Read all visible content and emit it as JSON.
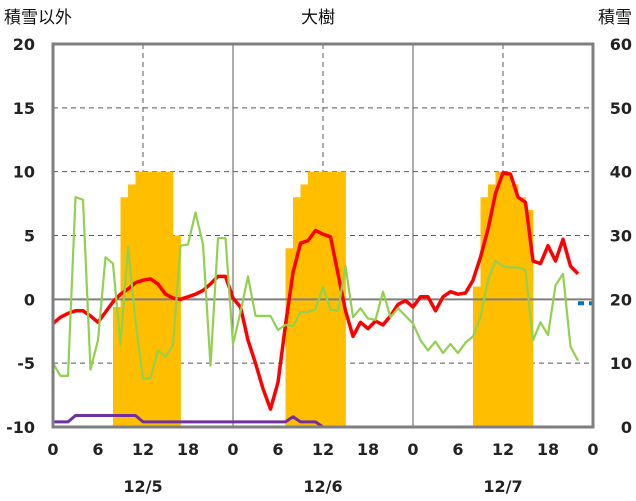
{
  "chart_data": {
    "type": "bar+line",
    "title": "大樹",
    "left_axis_label": "積雪以外",
    "right_axis_label": "積雪",
    "y_left": {
      "min": -10,
      "max": 20,
      "ticks": [
        "20",
        "15",
        "10",
        "5",
        "0",
        "-5",
        "-10"
      ]
    },
    "y_right": {
      "min": 0,
      "max": 60,
      "ticks": [
        "60",
        "50",
        "40",
        "30",
        "20",
        "10",
        "0"
      ]
    },
    "x": {
      "min": 0,
      "max": 72,
      "unit": "hours",
      "tick_labels": [
        "0",
        "6",
        "12",
        "18",
        "0",
        "6",
        "12",
        "18",
        "0",
        "6",
        "12",
        "18",
        "0"
      ],
      "day_labels": [
        "12/5",
        "12/6",
        "12/7"
      ]
    },
    "grid": true,
    "colors": {
      "bars": "#FFBF00",
      "red": "#FF0000",
      "green": "#92D050",
      "purple": "#7030A0",
      "blue": "#0070C0",
      "frame": "#7f7f7f",
      "zero": "#7f7f7f",
      "grid": "#595959"
    },
    "bars": {
      "values": [
        [
          0,
          0
        ],
        [
          1,
          0
        ],
        [
          2,
          0
        ],
        [
          3,
          0
        ],
        [
          4,
          0
        ],
        [
          5,
          0
        ],
        [
          6,
          0
        ],
        [
          7,
          0
        ],
        [
          8,
          18.8
        ],
        [
          9,
          36
        ],
        [
          10,
          38
        ],
        [
          11,
          40
        ],
        [
          12,
          40
        ],
        [
          13,
          40
        ],
        [
          14,
          40
        ],
        [
          15,
          40
        ],
        [
          16,
          30
        ],
        [
          17,
          0
        ],
        [
          18,
          0
        ],
        [
          19,
          0
        ],
        [
          20,
          0
        ],
        [
          21,
          0
        ],
        [
          22,
          0
        ],
        [
          23,
          0
        ],
        [
          24,
          0
        ],
        [
          25,
          0
        ],
        [
          26,
          0
        ],
        [
          27,
          0
        ],
        [
          28,
          0
        ],
        [
          29,
          0
        ],
        [
          30,
          0
        ],
        [
          31,
          28
        ],
        [
          32,
          36
        ],
        [
          33,
          38
        ],
        [
          34,
          40
        ],
        [
          35,
          40
        ],
        [
          36,
          40
        ],
        [
          37,
          40
        ],
        [
          38,
          40
        ],
        [
          39,
          0
        ],
        [
          40,
          0
        ],
        [
          41,
          0
        ],
        [
          42,
          0
        ],
        [
          43,
          0
        ],
        [
          44,
          0
        ],
        [
          45,
          0
        ],
        [
          46,
          0
        ],
        [
          47,
          0
        ],
        [
          48,
          0
        ],
        [
          49,
          0
        ],
        [
          50,
          0
        ],
        [
          51,
          0
        ],
        [
          52,
          0
        ],
        [
          53,
          0
        ],
        [
          54,
          0
        ],
        [
          55,
          0
        ],
        [
          56,
          22
        ],
        [
          57,
          36
        ],
        [
          58,
          38
        ],
        [
          59,
          40
        ],
        [
          60,
          40
        ],
        [
          61,
          38
        ],
        [
          62,
          36
        ],
        [
          63,
          34
        ],
        [
          64,
          0
        ],
        [
          65,
          0
        ],
        [
          66,
          0
        ],
        [
          67,
          0
        ],
        [
          68,
          0
        ],
        [
          69,
          0
        ],
        [
          70,
          0
        ],
        [
          71,
          0
        ]
      ]
    },
    "series": [
      {
        "color": "red",
        "values": [
          [
            0,
            -1.9
          ],
          [
            1,
            -1.4
          ],
          [
            2,
            -1.1
          ],
          [
            3,
            -0.9
          ],
          [
            4,
            -0.9
          ],
          [
            5,
            -1.3
          ],
          [
            6,
            -1.8
          ],
          [
            7,
            -1.0
          ],
          [
            8,
            -0.2
          ],
          [
            9,
            0.4
          ],
          [
            10,
            0.8
          ],
          [
            11,
            1.3
          ],
          [
            12,
            1.5
          ],
          [
            13,
            1.6
          ],
          [
            14,
            1.2
          ],
          [
            15,
            0.4
          ],
          [
            16,
            0.1
          ],
          [
            17,
            0.0
          ],
          [
            18,
            0.2
          ],
          [
            19,
            0.4
          ],
          [
            20,
            0.7
          ],
          [
            21,
            1.2
          ],
          [
            22,
            1.8
          ],
          [
            23,
            1.8
          ],
          [
            24,
            0.1
          ],
          [
            25,
            -0.6
          ],
          [
            26,
            -3.2
          ],
          [
            27,
            -5.0
          ],
          [
            28,
            -7.0
          ],
          [
            29,
            -8.6
          ],
          [
            30,
            -6.5
          ],
          [
            31,
            -2.0
          ],
          [
            32,
            2.1
          ],
          [
            33,
            4.4
          ],
          [
            34,
            4.6
          ],
          [
            35,
            5.4
          ],
          [
            36,
            5.1
          ],
          [
            37,
            4.9
          ],
          [
            38,
            2.0
          ],
          [
            39,
            -0.9
          ],
          [
            40,
            -2.9
          ],
          [
            41,
            -1.8
          ],
          [
            42,
            -2.3
          ],
          [
            43,
            -1.7
          ],
          [
            44,
            -2.0
          ],
          [
            45,
            -1.3
          ],
          [
            46,
            -0.4
          ],
          [
            47,
            -0.1
          ],
          [
            48,
            -0.6
          ],
          [
            49,
            0.2
          ],
          [
            50,
            0.2
          ],
          [
            51,
            -0.9
          ],
          [
            52,
            0.2
          ],
          [
            53,
            0.6
          ],
          [
            54,
            0.4
          ],
          [
            55,
            0.5
          ],
          [
            56,
            1.5
          ],
          [
            57,
            3.3
          ],
          [
            58,
            5.5
          ],
          [
            59,
            8.3
          ],
          [
            60,
            9.9
          ],
          [
            61,
            9.8
          ],
          [
            62,
            8.0
          ],
          [
            63,
            7.6
          ],
          [
            64,
            3.0
          ],
          [
            65,
            2.8
          ],
          [
            66,
            4.2
          ],
          [
            67,
            3.0
          ],
          [
            68,
            4.7
          ],
          [
            69,
            2.6
          ],
          [
            70,
            2.0
          ]
        ]
      },
      {
        "color": "green",
        "values": [
          [
            0,
            -5.0
          ],
          [
            1,
            -6.0
          ],
          [
            2,
            -6.0
          ],
          [
            3,
            8.0
          ],
          [
            4,
            7.8
          ],
          [
            5,
            -5.5
          ],
          [
            6,
            -3.2
          ],
          [
            7,
            3.3
          ],
          [
            8,
            2.8
          ],
          [
            9,
            -3.6
          ],
          [
            10,
            4.1
          ],
          [
            11,
            -1.7
          ],
          [
            12,
            -6.2
          ],
          [
            13,
            -6.2
          ],
          [
            14,
            -4.0
          ],
          [
            15,
            -4.5
          ],
          [
            16,
            -3.6
          ],
          [
            17,
            4.2
          ],
          [
            18,
            4.3
          ],
          [
            19,
            6.8
          ],
          [
            20,
            4.3
          ],
          [
            21,
            -5.2
          ],
          [
            22,
            4.8
          ],
          [
            23,
            4.8
          ],
          [
            24,
            -3.5
          ],
          [
            25,
            -1.0
          ],
          [
            26,
            1.8
          ],
          [
            27,
            -1.3
          ],
          [
            28,
            -1.3
          ],
          [
            29,
            -1.3
          ],
          [
            30,
            -2.4
          ],
          [
            31,
            -2.0
          ],
          [
            32,
            -2.1
          ],
          [
            33,
            -1.0
          ],
          [
            34,
            -1.0
          ],
          [
            35,
            -0.8
          ],
          [
            36,
            1.0
          ],
          [
            37,
            -0.8
          ],
          [
            38,
            -0.9
          ],
          [
            39,
            2.6
          ],
          [
            40,
            -1.4
          ],
          [
            41,
            -0.7
          ],
          [
            42,
            -1.5
          ],
          [
            43,
            -1.6
          ],
          [
            44,
            0.6
          ],
          [
            45,
            -1.4
          ],
          [
            46,
            -0.7
          ],
          [
            47,
            -1.3
          ],
          [
            48,
            -1.9
          ],
          [
            49,
            -3.2
          ],
          [
            50,
            -4.0
          ],
          [
            51,
            -3.3
          ],
          [
            52,
            -4.2
          ],
          [
            53,
            -3.5
          ],
          [
            54,
            -4.2
          ],
          [
            55,
            -3.4
          ],
          [
            56,
            -2.9
          ],
          [
            57,
            -1.4
          ],
          [
            58,
            1.5
          ],
          [
            59,
            3.0
          ],
          [
            60,
            2.6
          ],
          [
            61,
            2.5
          ],
          [
            62,
            2.5
          ],
          [
            63,
            2.3
          ],
          [
            64,
            -3.2
          ],
          [
            65,
            -1.8
          ],
          [
            66,
            -2.8
          ],
          [
            67,
            1.1
          ],
          [
            68,
            2.0
          ],
          [
            69,
            -3.7
          ],
          [
            70,
            -4.8
          ]
        ]
      },
      {
        "color": "purple",
        "values": [
          [
            0,
            -9.6
          ],
          [
            2,
            -9.6
          ],
          [
            3,
            -9.1
          ],
          [
            11,
            -9.1
          ],
          [
            12,
            -9.6
          ],
          [
            31,
            -9.6
          ],
          [
            32,
            -9.2
          ],
          [
            33,
            -9.6
          ],
          [
            35,
            -9.6
          ],
          [
            36,
            -10.0
          ],
          [
            72,
            -10.0
          ]
        ]
      },
      {
        "color": "blue",
        "values": [
          [
            70,
            -0.3
          ],
          [
            72,
            -0.3
          ]
        ]
      }
    ]
  }
}
